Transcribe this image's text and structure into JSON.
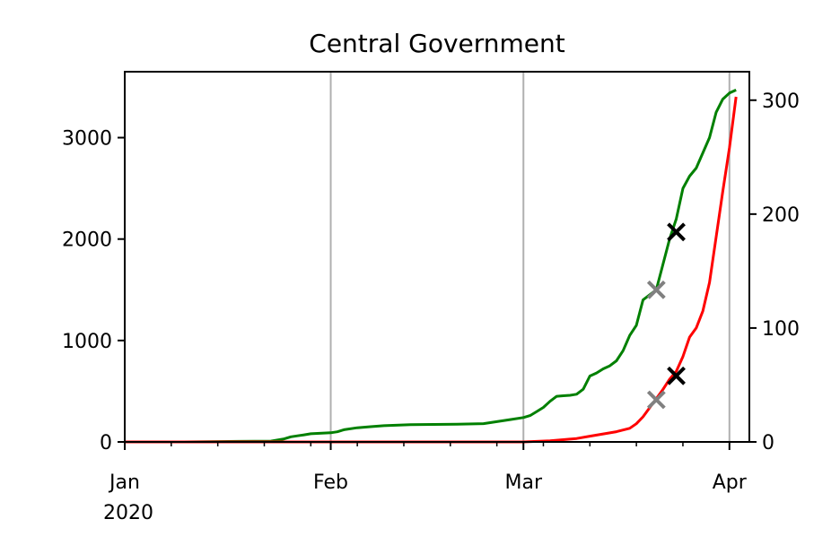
{
  "chart_data": {
    "type": "line",
    "title": "Central Government",
    "x_type": "date",
    "xlim": [
      "2020-01-01",
      "2020-04-04"
    ],
    "x_ticks": [
      {
        "date": "2020-01-01",
        "label": "Jan",
        "sublabel": "2020"
      },
      {
        "date": "2020-02-01",
        "label": "Feb",
        "sublabel": ""
      },
      {
        "date": "2020-03-01",
        "label": "Mar",
        "sublabel": ""
      },
      {
        "date": "2020-04-01",
        "label": "Apr",
        "sublabel": ""
      }
    ],
    "vertical_grid_dates": [
      "2020-02-01",
      "2020-03-01",
      "2020-04-01"
    ],
    "y_left": {
      "lim": [
        0,
        3650
      ],
      "ticks": [
        0,
        1000,
        2000,
        3000
      ]
    },
    "y_right": {
      "lim": [
        0,
        325
      ],
      "ticks": [
        0,
        100,
        200,
        300
      ]
    },
    "series": [
      {
        "axis": "left",
        "color": "#008000",
        "points": [
          [
            "2020-01-01",
            0
          ],
          [
            "2020-01-10",
            0
          ],
          [
            "2020-01-18",
            5
          ],
          [
            "2020-01-23",
            8
          ],
          [
            "2020-01-25",
            30
          ],
          [
            "2020-01-26",
            50
          ],
          [
            "2020-01-27",
            60
          ],
          [
            "2020-01-28",
            70
          ],
          [
            "2020-01-29",
            80
          ],
          [
            "2020-02-01",
            90
          ],
          [
            "2020-02-02",
            100
          ],
          [
            "2020-02-03",
            120
          ],
          [
            "2020-02-05",
            140
          ],
          [
            "2020-02-07",
            150
          ],
          [
            "2020-02-09",
            160
          ],
          [
            "2020-02-13",
            170
          ],
          [
            "2020-02-20",
            175
          ],
          [
            "2020-02-24",
            180
          ],
          [
            "2020-02-26",
            200
          ],
          [
            "2020-02-28",
            220
          ],
          [
            "2020-03-01",
            240
          ],
          [
            "2020-03-02",
            260
          ],
          [
            "2020-03-03",
            300
          ],
          [
            "2020-03-04",
            340
          ],
          [
            "2020-03-05",
            400
          ],
          [
            "2020-03-06",
            450
          ],
          [
            "2020-03-07",
            455
          ],
          [
            "2020-03-08",
            460
          ],
          [
            "2020-03-09",
            470
          ],
          [
            "2020-03-10",
            520
          ],
          [
            "2020-03-11",
            650
          ],
          [
            "2020-03-12",
            680
          ],
          [
            "2020-03-13",
            720
          ],
          [
            "2020-03-14",
            750
          ],
          [
            "2020-03-15",
            800
          ],
          [
            "2020-03-16",
            900
          ],
          [
            "2020-03-17",
            1050
          ],
          [
            "2020-03-18",
            1150
          ],
          [
            "2020-03-19",
            1400
          ],
          [
            "2020-03-20",
            1450
          ],
          [
            "2020-03-21",
            1500
          ],
          [
            "2020-03-22",
            1750
          ],
          [
            "2020-03-23",
            2000
          ],
          [
            "2020-03-24",
            2200
          ],
          [
            "2020-03-25",
            2500
          ],
          [
            "2020-03-26",
            2620
          ],
          [
            "2020-03-27",
            2700
          ],
          [
            "2020-03-28",
            2850
          ],
          [
            "2020-03-29",
            3000
          ],
          [
            "2020-03-30",
            3250
          ],
          [
            "2020-03-31",
            3380
          ],
          [
            "2020-04-01",
            3440
          ],
          [
            "2020-04-02",
            3470
          ]
        ]
      },
      {
        "axis": "right",
        "color": "#ff0000",
        "points": [
          [
            "2020-01-01",
            0
          ],
          [
            "2020-03-01",
            0
          ],
          [
            "2020-03-03",
            0.5
          ],
          [
            "2020-03-05",
            1
          ],
          [
            "2020-03-07",
            2
          ],
          [
            "2020-03-09",
            3
          ],
          [
            "2020-03-11",
            5
          ],
          [
            "2020-03-13",
            7
          ],
          [
            "2020-03-15",
            9
          ],
          [
            "2020-03-17",
            12
          ],
          [
            "2020-03-18",
            16
          ],
          [
            "2020-03-19",
            22
          ],
          [
            "2020-03-20",
            30
          ],
          [
            "2020-03-21",
            38
          ],
          [
            "2020-03-22",
            46
          ],
          [
            "2020-03-23",
            55
          ],
          [
            "2020-03-24",
            62
          ],
          [
            "2020-03-25",
            75
          ],
          [
            "2020-03-26",
            92
          ],
          [
            "2020-03-27",
            100
          ],
          [
            "2020-03-28",
            115
          ],
          [
            "2020-03-29",
            140
          ],
          [
            "2020-03-30",
            180
          ],
          [
            "2020-03-31",
            220
          ],
          [
            "2020-04-01",
            258
          ],
          [
            "2020-04-02",
            303
          ]
        ]
      }
    ],
    "markers": [
      {
        "date": "2020-03-21",
        "value": 1500,
        "axis": "left",
        "color": "#808080",
        "shape": "x"
      },
      {
        "date": "2020-03-24",
        "value": 2070,
        "axis": "left",
        "color": "#000000",
        "shape": "x"
      },
      {
        "date": "2020-03-21",
        "value": 37,
        "axis": "right",
        "color": "#808080",
        "shape": "x"
      },
      {
        "date": "2020-03-24",
        "value": 58,
        "axis": "right",
        "color": "#000000",
        "shape": "x"
      }
    ],
    "grid": "vertical-x-only"
  }
}
